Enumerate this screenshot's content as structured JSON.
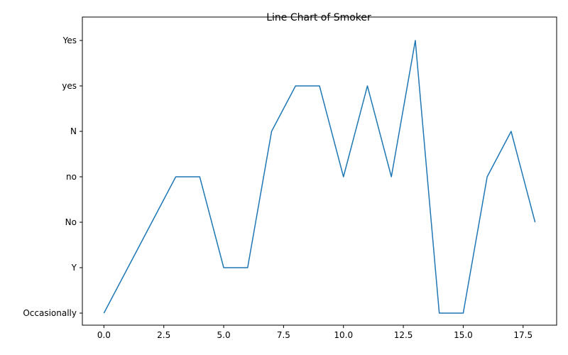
{
  "chart_data": {
    "type": "line",
    "title": "Line Chart of Smoker",
    "xlabel": "",
    "ylabel": "",
    "x": [
      0,
      1,
      2,
      3,
      4,
      5,
      6,
      7,
      8,
      9,
      10,
      11,
      12,
      13,
      14,
      15,
      16,
      17,
      18
    ],
    "y_categories": [
      "Occasionally",
      "Y",
      "No",
      "no",
      "N",
      "yes",
      "Yes"
    ],
    "series": [
      {
        "values": [
          "Occasionally",
          "Y",
          "No",
          "no",
          "no",
          "Y",
          "Y",
          "N",
          "yes",
          "yes",
          "no",
          "yes",
          "no",
          "Yes",
          "Occasionally",
          "Occasionally",
          "no",
          "N",
          "No"
        ],
        "color": "#1f77b4"
      }
    ],
    "x_ticks": [
      "0.0",
      "2.5",
      "5.0",
      "7.5",
      "10.0",
      "12.5",
      "15.0",
      "17.5"
    ],
    "xlim": [
      -0.9,
      18.9
    ],
    "grid": false,
    "legend": "none"
  }
}
